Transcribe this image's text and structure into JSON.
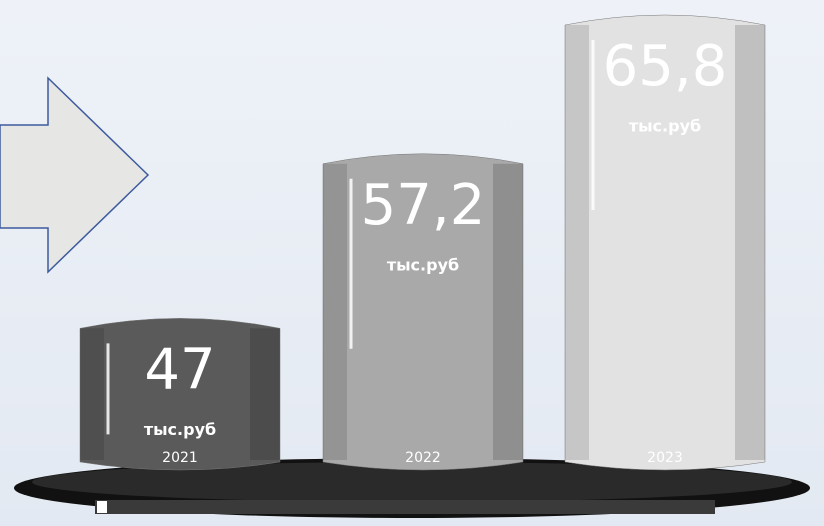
{
  "chart_data": {
    "type": "cylinder",
    "categories": [
      "2021",
      "2022",
      "2023"
    ],
    "values": [
      47,
      57.2,
      65.8
    ],
    "value_labels": [
      "47",
      "57,2",
      "65,8"
    ],
    "unit": "тыс.руб",
    "colors": [
      "#5a5a5a",
      "#a9a9a9",
      "#e2e2e2"
    ]
  }
}
